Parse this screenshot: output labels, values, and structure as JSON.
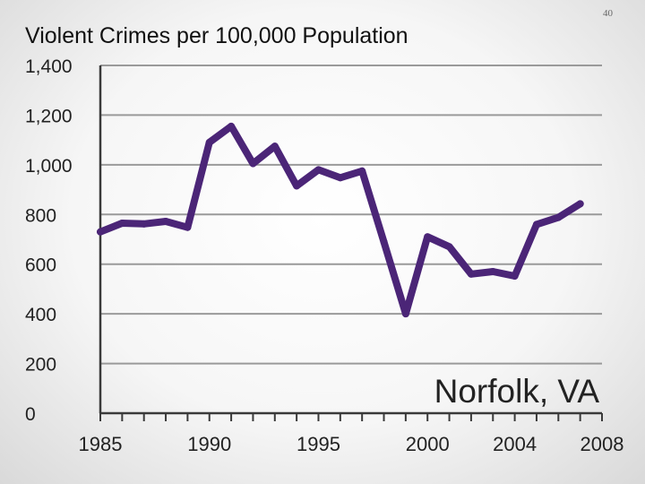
{
  "slide": {
    "number": "40"
  },
  "chart_data": {
    "type": "line",
    "title": "Violent Crimes per 100,000 Population",
    "annotation": "Norfolk, VA",
    "xlabel": "",
    "ylabel": "",
    "xlim": [
      1985,
      2008
    ],
    "ylim": [
      0,
      1400
    ],
    "x_ticks": [
      1985,
      1990,
      1995,
      2000,
      2004,
      2008
    ],
    "y_ticks": [
      0,
      200,
      400,
      600,
      800,
      1000,
      1200,
      1400
    ],
    "y_tick_labels": [
      "0",
      "200",
      "400",
      "600",
      "800",
      "1,000",
      "1,200",
      "1,400"
    ],
    "grid": true,
    "line_color": "#4b2577",
    "series": [
      {
        "x": [
          1985,
          1986,
          1987,
          1988,
          1989,
          1990,
          1991,
          1992,
          1993,
          1994,
          1995,
          1996,
          1997,
          1998,
          1999,
          2000,
          2001,
          2002,
          2003,
          2004,
          2005,
          2006,
          2007
        ],
        "values": [
          730,
          765,
          762,
          772,
          748,
          1090,
          1155,
          1005,
          1075,
          915,
          980,
          948,
          975,
          690,
          400,
          710,
          670,
          560,
          570,
          552,
          760,
          788,
          843
        ]
      }
    ]
  }
}
